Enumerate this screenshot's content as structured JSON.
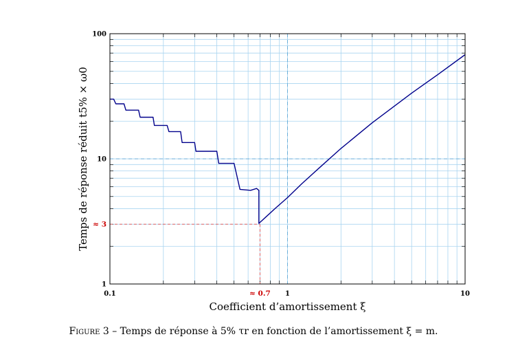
{
  "chart_data": {
    "type": "line",
    "xscale": "log",
    "yscale": "log",
    "xlim": [
      0.1,
      10
    ],
    "ylim": [
      1,
      100
    ],
    "grid": true,
    "xlabel": "Coefficient d’amortissement ξ",
    "ylabel": "Temps de réponse réduit t5% × ω0",
    "x_ticks": [
      "0.1",
      "1",
      "10"
    ],
    "y_ticks": [
      "1",
      "10",
      "100"
    ],
    "annotations": [
      {
        "label": "≈ 3",
        "axis": "y",
        "value": 3
      },
      {
        "label": "≈ 0.7",
        "axis": "x",
        "value": 0.7
      }
    ],
    "reference_lines": {
      "x": 1,
      "y": 10
    },
    "series": [
      {
        "color": "#00008b",
        "x": [
          0.1,
          0.105,
          0.108,
          0.12,
          0.123,
          0.145,
          0.148,
          0.175,
          0.178,
          0.21,
          0.215,
          0.25,
          0.255,
          0.3,
          0.305,
          0.4,
          0.41,
          0.5,
          0.54,
          0.62,
          0.67,
          0.69,
          0.69,
          0.75,
          0.85,
          1.0,
          1.2,
          1.5,
          2.0,
          3.0,
          5.0,
          7.0,
          10.0
        ],
        "y": [
          30,
          30,
          27.5,
          27.5,
          24.5,
          24.5,
          21.5,
          21.5,
          18.5,
          18.5,
          16.5,
          16.5,
          13.5,
          13.5,
          11.5,
          11.5,
          9.2,
          9.2,
          5.7,
          5.6,
          5.8,
          5.6,
          3.05,
          3.4,
          4.0,
          4.9,
          6.3,
          8.4,
          12.1,
          19.4,
          33.5,
          47,
          68
        ]
      }
    ]
  },
  "caption": {
    "figure_label": "Figure 3 –",
    "text": "Temps de réponse à 5% τr en fonction de l’amortissement ξ = m."
  }
}
